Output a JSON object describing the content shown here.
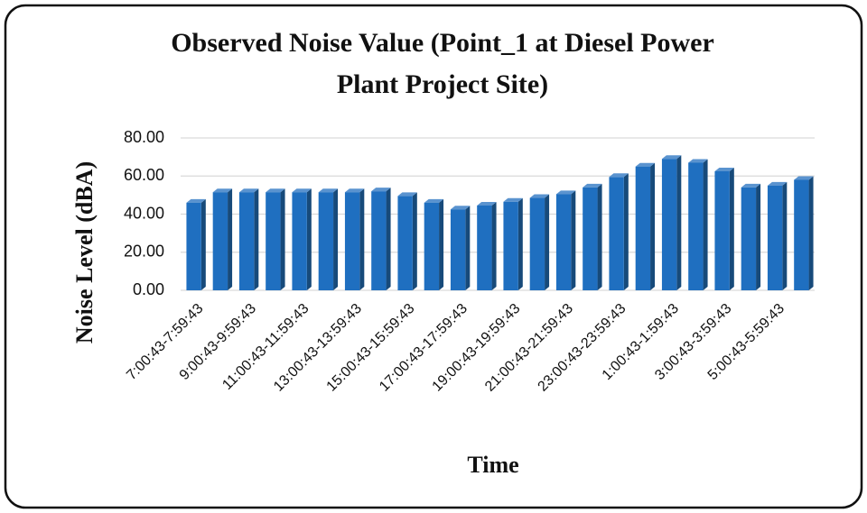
{
  "chart_data": {
    "type": "bar",
    "title": "Observed Noise Value (Point_1 at Diesel Power",
    "subtitle": "Plant Project Site)",
    "x_label": "Time",
    "y_label": "Noise Level (dBA)",
    "categories": [
      "7:00:43-7:59:43",
      null,
      "9:00:43-9:59:43",
      null,
      "11:00:43-11:59:43",
      null,
      "13:00:43-13:59:43",
      null,
      "15:00:43-15:59:43",
      null,
      "17:00:43-17:59:43",
      null,
      "19:00:43-19:59:43",
      null,
      "21:00:43-21:59:43",
      null,
      "23:00:43-23:59:43",
      null,
      "1:00:43-1:59:43",
      null,
      "3:00:43-3:59:43",
      null,
      "5:00:43-5:59:43",
      null
    ],
    "values": [
      46,
      51.5,
      51.5,
      51.5,
      51.5,
      51.5,
      51.5,
      52,
      49.5,
      46,
      42.5,
      44.5,
      46.5,
      48.5,
      50.5,
      54,
      59.5,
      65,
      69,
      67,
      62.5,
      54,
      55,
      58
    ],
    "color": "#1f6fc0",
    "ylim": [
      0,
      80
    ],
    "yticks": [
      {
        "value": 0,
        "label": "0.00"
      },
      {
        "value": 20,
        "label": "20.00"
      },
      {
        "value": 40,
        "label": "40.00"
      },
      {
        "value": 60,
        "label": "60.00"
      },
      {
        "value": 80,
        "label": "80.00"
      }
    ],
    "grid": true
  }
}
